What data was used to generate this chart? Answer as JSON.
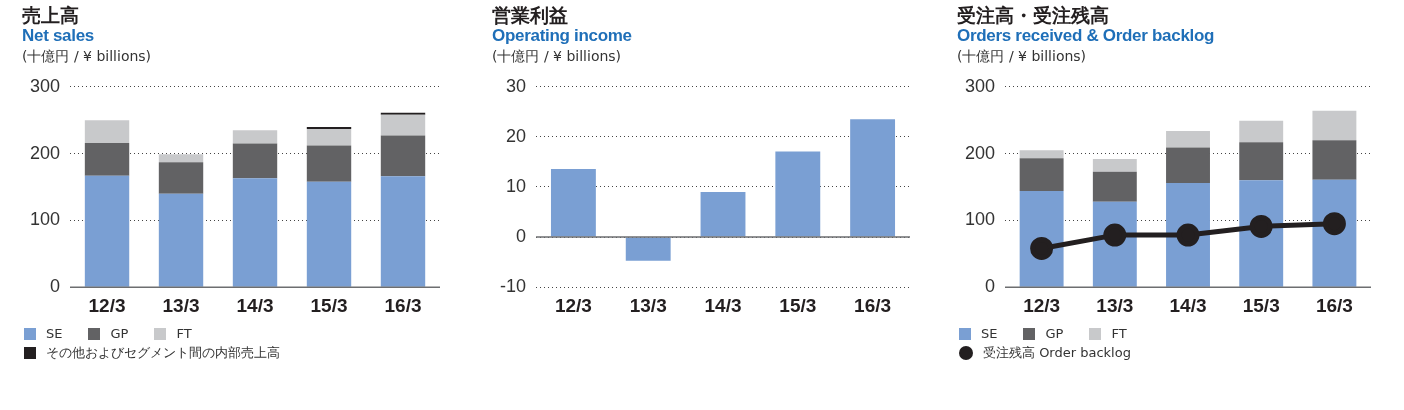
{
  "chart_data": [
    {
      "type": "bar",
      "title": "売上高",
      "subtitle": "Net sales",
      "ylabel": "(十億円 / ¥ billions)",
      "categories": [
        "12/3",
        "13/3",
        "14/3",
        "15/3",
        "16/3"
      ],
      "stacked": true,
      "ylim": [
        0,
        300
      ],
      "yticks": [
        0,
        100,
        200,
        300
      ],
      "grid": "y",
      "legend": "bottom",
      "series": [
        {
          "name": "SE",
          "color": "#7a9fd3",
          "values": [
            167,
            140,
            163,
            158,
            166
          ]
        },
        {
          "name": "GP",
          "color": "#626264",
          "values": [
            49,
            47,
            52,
            54,
            61
          ]
        },
        {
          "name": "FT",
          "color": "#c8c9cb",
          "values": [
            34,
            12,
            20,
            25,
            31
          ]
        },
        {
          "name": "その他およびセグメント間の内部売上高",
          "color": "#231f20",
          "values": [
            null,
            null,
            null,
            1,
            1
          ]
        }
      ]
    },
    {
      "type": "bar",
      "title": "営業利益",
      "subtitle": "Operating income",
      "ylabel": "(十億円 / ¥ billions)",
      "categories": [
        "12/3",
        "13/3",
        "14/3",
        "15/3",
        "16/3"
      ],
      "ylim": [
        -10,
        30
      ],
      "yticks": [
        -10,
        0,
        10,
        20,
        30
      ],
      "grid": "y",
      "series": [
        {
          "color": "#7a9fd3",
          "values": [
            13.6,
            -4.7,
            9.0,
            17.1,
            23.5
          ]
        }
      ]
    },
    {
      "type": "bar",
      "title": "受注高・受注残高",
      "subtitle": "Orders received & Order backlog",
      "ylabel": "(十億円 / ¥ billions)",
      "categories": [
        "12/3",
        "13/3",
        "14/3",
        "15/3",
        "16/3"
      ],
      "stacked": true,
      "ylim": [
        0,
        300
      ],
      "yticks": [
        0,
        100,
        200,
        300
      ],
      "grid": "y",
      "legend": "bottom",
      "series": [
        {
          "name": "SE",
          "color": "#7a9fd3",
          "values": [
            144,
            128,
            156,
            160,
            161
          ]
        },
        {
          "name": "GP",
          "color": "#626264",
          "values": [
            49,
            45,
            53,
            57,
            59
          ]
        },
        {
          "name": "FT",
          "color": "#c8c9cb",
          "values": [
            12,
            19,
            25,
            32,
            44
          ]
        },
        {
          "name": "受注残高 Order backlog",
          "type": "line",
          "marker": "circle",
          "line_style": "solid",
          "color": "#231f20",
          "values": [
            58,
            78,
            78,
            91,
            95
          ]
        }
      ]
    }
  ]
}
